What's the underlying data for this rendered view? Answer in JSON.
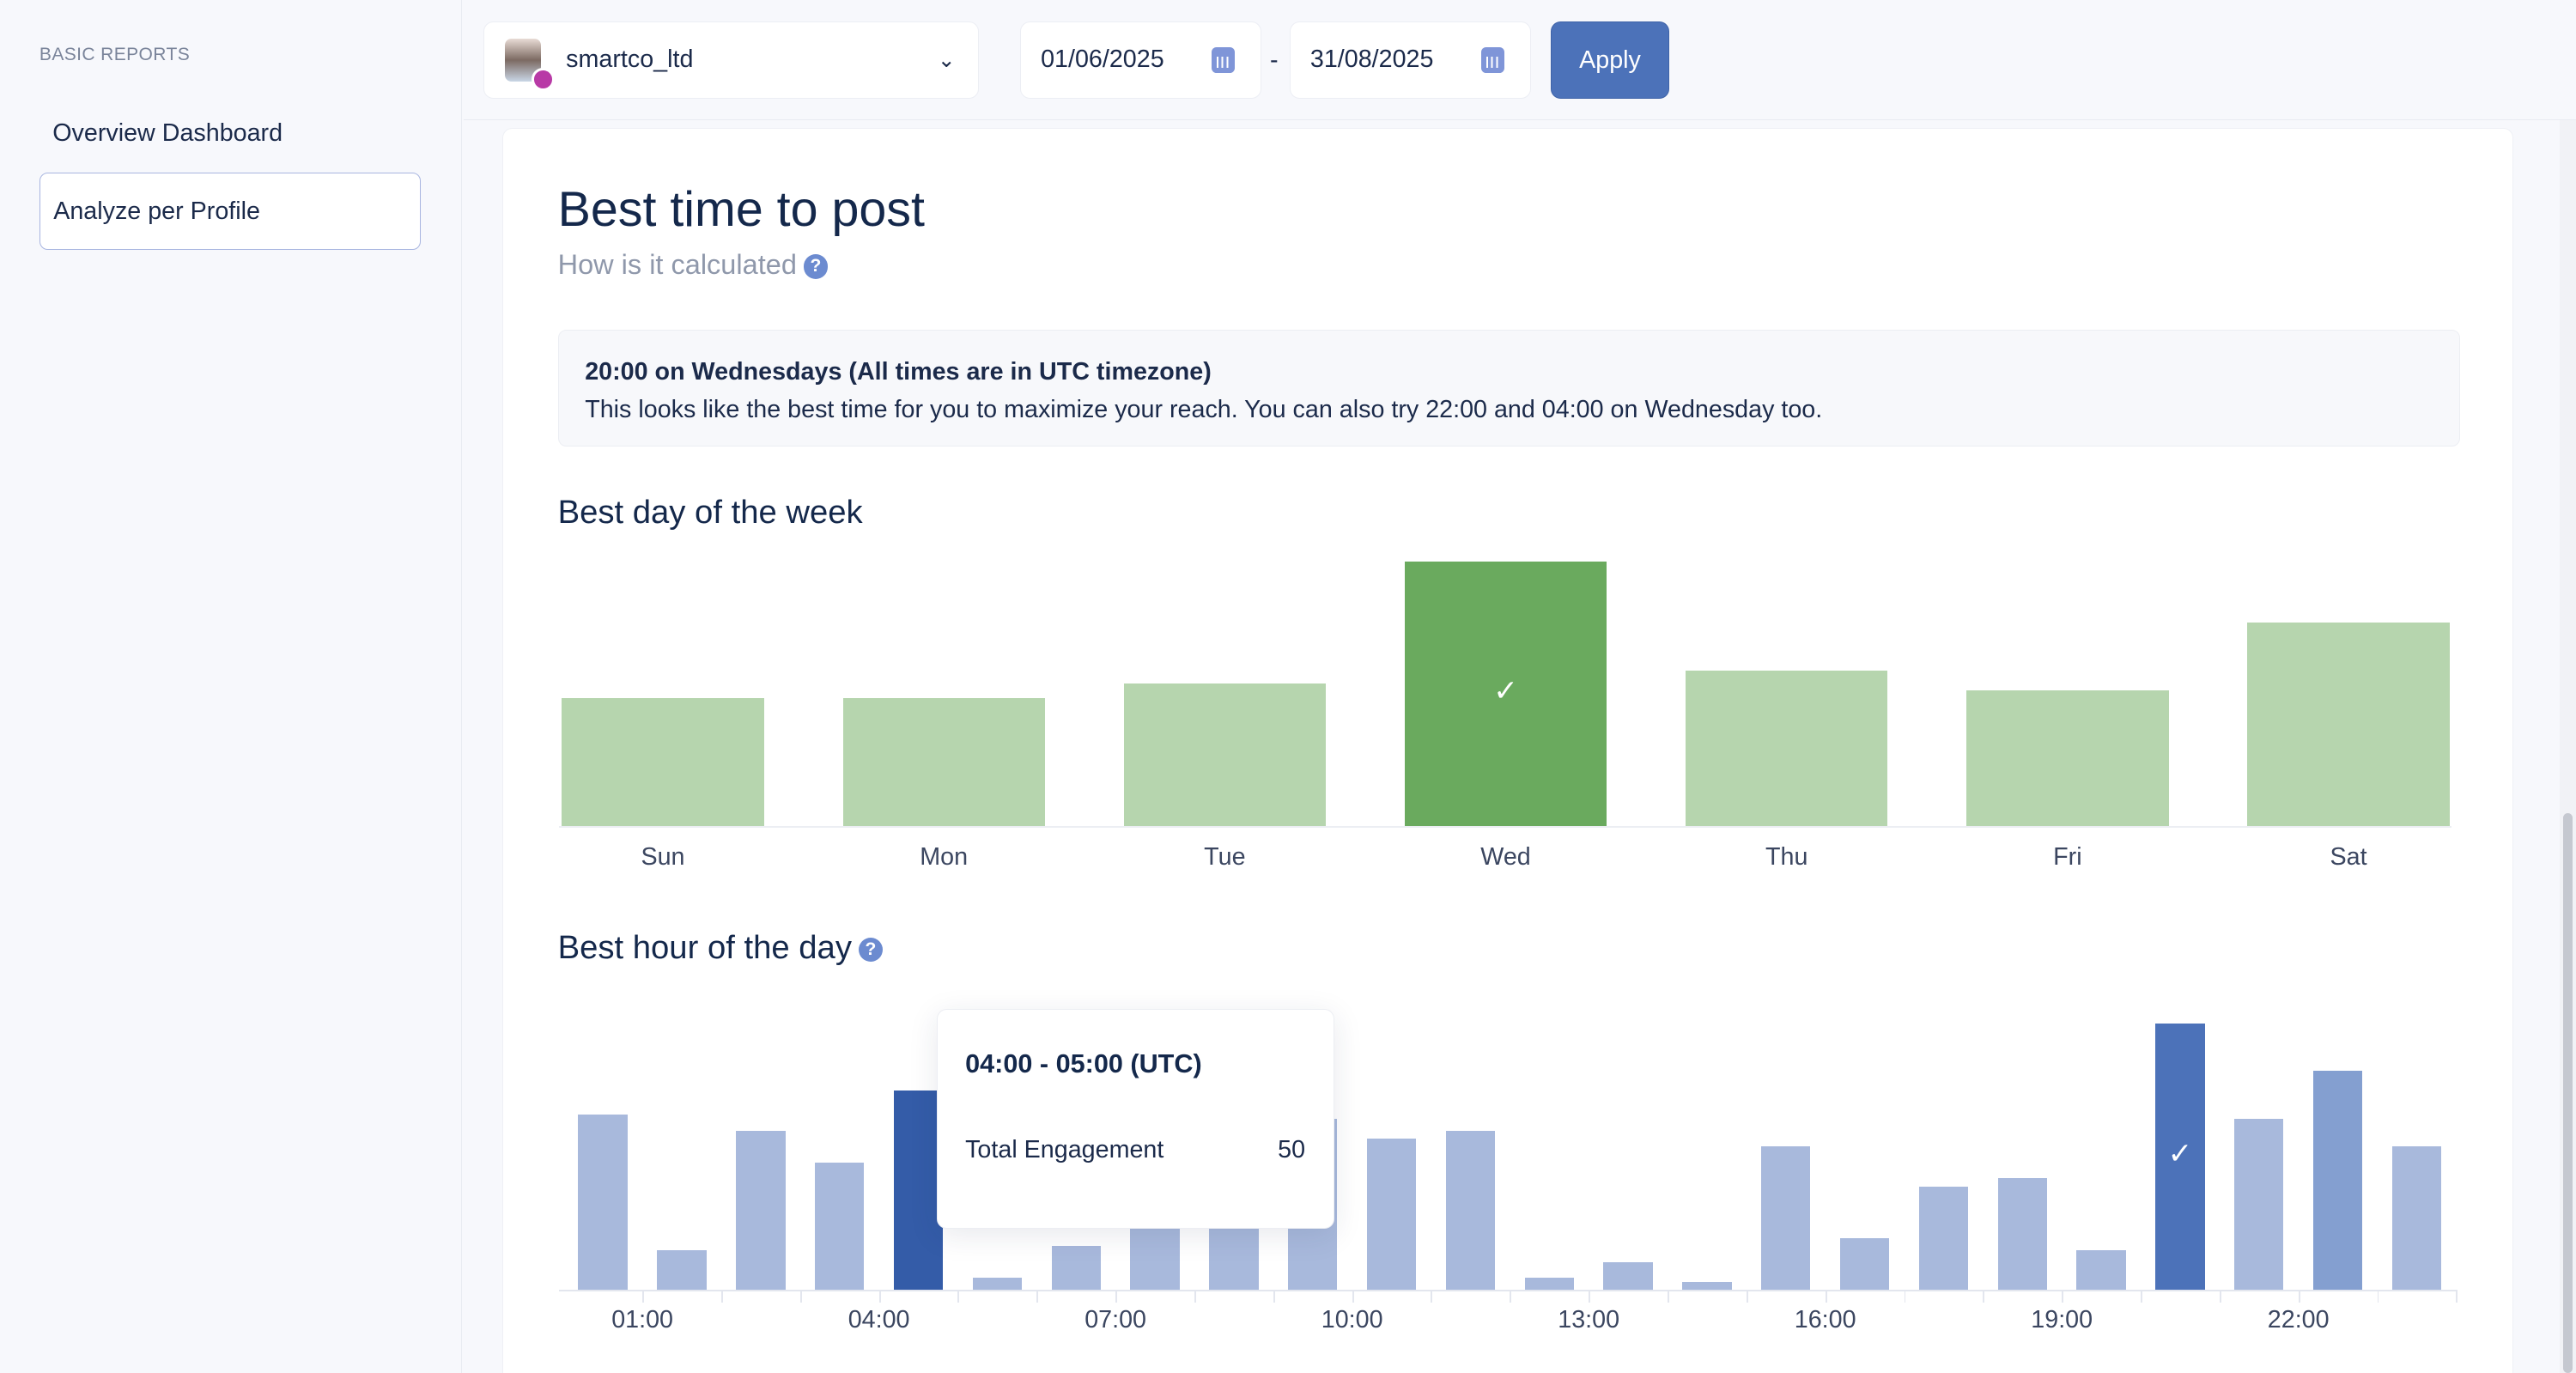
{
  "sidebar": {
    "section": "BASIC REPORTS",
    "items": [
      {
        "label": "Overview Dashboard"
      },
      {
        "label": "Analyze per Profile"
      }
    ]
  },
  "topbar": {
    "profile": "smartco_ltd",
    "date_from": "01/06/2025",
    "date_sep": "-",
    "date_to": "31/08/2025",
    "apply": "Apply"
  },
  "card": {
    "title": "Best time to post",
    "help": "How is it calculated",
    "help_icon": "?",
    "note_title": "20:00 on Wednesdays (All times are in UTC timezone)",
    "note_text": "This looks like the best time for you to maximize your reach. You can also try 22:00 and 04:00 on Wednesday too.",
    "day_title": "Best day of the week",
    "hour_title": "Best hour of the day"
  },
  "tooltip": {
    "title": "04:00 - 05:00 (UTC)",
    "label": "Total Engagement",
    "value": "50"
  },
  "colors": {
    "day_light": "#b6d5ae",
    "day_best": "#6aaa5e",
    "hour_light": "#a8b9dc",
    "hour_best": "#4c72b9",
    "hour_hover": "#345ca8",
    "hour_second": "#849fd0"
  },
  "chart_data": [
    {
      "type": "bar",
      "title": "Best day of the week",
      "categories": [
        "Sun",
        "Mon",
        "Tue",
        "Wed",
        "Thu",
        "Fri",
        "Sat"
      ],
      "values": [
        78,
        78,
        87,
        161,
        95,
        83,
        124
      ],
      "best": "Wed"
    },
    {
      "type": "bar",
      "title": "Best hour of the day",
      "categories": [
        "00:00",
        "01:00",
        "02:00",
        "03:00",
        "04:00",
        "05:00",
        "06:00",
        "07:00",
        "08:00",
        "09:00",
        "10:00",
        "11:00",
        "12:00",
        "13:00",
        "14:00",
        "15:00",
        "16:00",
        "17:00",
        "18:00",
        "19:00",
        "20:00",
        "21:00",
        "22:00",
        "23:00"
      ],
      "tick_labels": [
        "01:00",
        "04:00",
        "07:00",
        "10:00",
        "13:00",
        "16:00",
        "19:00",
        "22:00"
      ],
      "values": [
        44,
        10,
        40,
        32,
        50,
        3,
        11,
        20,
        22,
        43,
        38,
        40,
        3,
        7,
        2,
        36,
        13,
        26,
        28,
        10,
        67,
        43,
        55,
        36
      ],
      "best": "20:00",
      "hovered": "04:00"
    }
  ]
}
